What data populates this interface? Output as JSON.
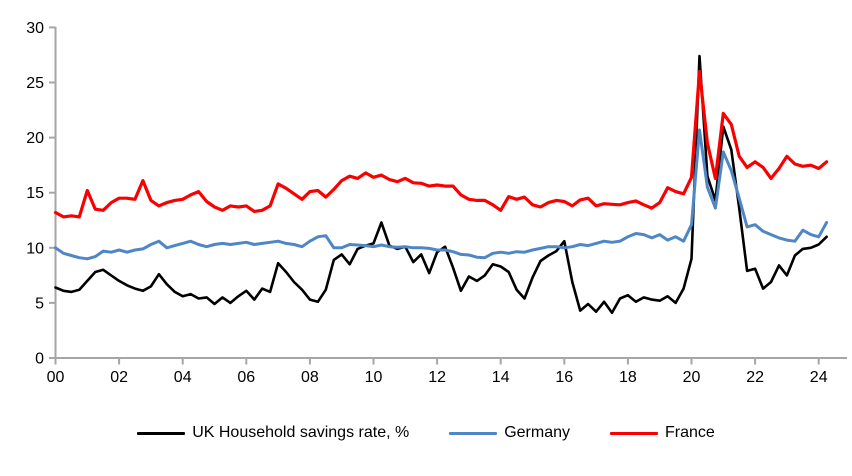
{
  "chart_data": {
    "type": "line",
    "title": "",
    "xlabel": "",
    "ylabel": "",
    "ylim": [
      0,
      30
    ],
    "xlim": [
      2000,
      2024.5
    ],
    "grid": false,
    "legend_position": "bottom-center",
    "axis_color": "#a6a6a6",
    "y_ticks": [
      0,
      5,
      10,
      15,
      20,
      25,
      30
    ],
    "x_ticks": [
      {
        "year": 2000,
        "label": "00"
      },
      {
        "year": 2002,
        "label": "02"
      },
      {
        "year": 2004,
        "label": "04"
      },
      {
        "year": 2006,
        "label": "06"
      },
      {
        "year": 2008,
        "label": "08"
      },
      {
        "year": 2010,
        "label": "10"
      },
      {
        "year": 2012,
        "label": "12"
      },
      {
        "year": 2014,
        "label": "14"
      },
      {
        "year": 2016,
        "label": "16"
      },
      {
        "year": 2018,
        "label": "18"
      },
      {
        "year": 2020,
        "label": "20"
      },
      {
        "year": 2022,
        "label": "22"
      },
      {
        "year": 2024,
        "label": "24"
      }
    ],
    "x_years": [
      2000,
      2000.25,
      2000.5,
      2000.75,
      2001,
      2001.25,
      2001.5,
      2001.75,
      2002,
      2002.25,
      2002.5,
      2002.75,
      2003,
      2003.25,
      2003.5,
      2003.75,
      2004,
      2004.25,
      2004.5,
      2004.75,
      2005,
      2005.25,
      2005.5,
      2005.75,
      2006,
      2006.25,
      2006.5,
      2006.75,
      2007,
      2007.25,
      2007.5,
      2007.75,
      2008,
      2008.25,
      2008.5,
      2008.75,
      2009,
      2009.25,
      2009.5,
      2009.75,
      2010,
      2010.25,
      2010.5,
      2010.75,
      2011,
      2011.25,
      2011.5,
      2011.75,
      2012,
      2012.25,
      2012.5,
      2012.75,
      2013,
      2013.25,
      2013.5,
      2013.75,
      2014,
      2014.25,
      2014.5,
      2014.75,
      2015,
      2015.25,
      2015.5,
      2015.75,
      2016,
      2016.25,
      2016.5,
      2016.75,
      2017,
      2017.25,
      2017.5,
      2017.75,
      2018,
      2018.25,
      2018.5,
      2018.75,
      2019,
      2019.25,
      2019.5,
      2019.75,
      2020,
      2020.25,
      2020.5,
      2020.75,
      2021,
      2021.25,
      2021.5,
      2021.75,
      2022,
      2022.25,
      2022.5,
      2022.75,
      2023,
      2023.25,
      2023.5,
      2023.75,
      2024,
      2024.25
    ],
    "series": [
      {
        "name": "UK Household savings rate, %",
        "color": "#000000",
        "stroke_width": 2.6,
        "values": [
          6.4,
          6.1,
          6.0,
          6.2,
          7.0,
          7.8,
          8.0,
          7.5,
          7.0,
          6.6,
          6.3,
          6.1,
          6.5,
          7.6,
          6.7,
          6.0,
          5.6,
          5.8,
          5.4,
          5.5,
          4.9,
          5.5,
          5.0,
          5.6,
          6.1,
          5.3,
          6.3,
          6.0,
          8.6,
          7.8,
          6.9,
          6.2,
          5.3,
          5.1,
          6.2,
          8.9,
          9.4,
          8.5,
          9.9,
          10.2,
          10.4,
          12.3,
          10.2,
          9.9,
          10.1,
          8.7,
          9.4,
          7.7,
          9.6,
          10.1,
          8.2,
          6.1,
          7.4,
          7.0,
          7.5,
          8.5,
          8.3,
          7.8,
          6.2,
          5.4,
          7.3,
          8.8,
          9.3,
          9.7,
          10.6,
          6.9,
          4.3,
          4.9,
          4.2,
          5.1,
          4.1,
          5.4,
          5.7,
          5.1,
          5.5,
          5.3,
          5.2,
          5.6,
          5.0,
          6.3,
          9.0,
          27.4,
          16.5,
          14.3,
          21.0,
          18.9,
          13.6,
          7.9,
          8.1,
          6.3,
          6.9,
          8.4,
          7.5,
          9.3,
          9.9,
          10.0,
          10.3,
          11.0
        ]
      },
      {
        "name": "Germany",
        "color": "#4f86c6",
        "stroke_width": 3.0,
        "values": [
          10.0,
          9.5,
          9.3,
          9.1,
          9.0,
          9.2,
          9.7,
          9.6,
          9.8,
          9.6,
          9.8,
          9.9,
          10.3,
          10.6,
          10.0,
          10.2,
          10.4,
          10.6,
          10.3,
          10.1,
          10.3,
          10.4,
          10.3,
          10.4,
          10.5,
          10.3,
          10.4,
          10.5,
          10.6,
          10.4,
          10.3,
          10.1,
          10.6,
          11.0,
          11.1,
          10.0,
          10.0,
          10.3,
          10.25,
          10.2,
          10.1,
          10.25,
          10.1,
          10.05,
          10.1,
          10.0,
          10.0,
          9.95,
          9.8,
          9.8,
          9.65,
          9.4,
          9.35,
          9.15,
          9.1,
          9.5,
          9.6,
          9.5,
          9.65,
          9.6,
          9.8,
          9.95,
          10.1,
          10.1,
          10.0,
          10.1,
          10.3,
          10.2,
          10.4,
          10.6,
          10.5,
          10.6,
          11.0,
          11.3,
          11.2,
          10.9,
          11.2,
          10.7,
          11.0,
          10.6,
          12.1,
          20.7,
          15.5,
          13.6,
          18.7,
          17.0,
          14.5,
          11.9,
          12.1,
          11.5,
          11.2,
          10.9,
          10.7,
          10.6,
          11.6,
          11.2,
          11.0,
          12.3
        ]
      },
      {
        "name": "France",
        "color": "#fb0000",
        "stroke_width": 3.2,
        "values": [
          13.2,
          12.8,
          12.9,
          12.8,
          15.2,
          13.5,
          13.4,
          14.1,
          14.5,
          14.5,
          14.4,
          16.1,
          14.3,
          13.8,
          14.1,
          14.3,
          14.4,
          14.8,
          15.1,
          14.2,
          13.7,
          13.4,
          13.8,
          13.7,
          13.8,
          13.3,
          13.4,
          13.8,
          15.8,
          15.4,
          14.9,
          14.4,
          15.1,
          15.2,
          14.6,
          15.3,
          16.1,
          16.5,
          16.3,
          16.8,
          16.4,
          16.6,
          16.2,
          16.0,
          16.3,
          15.9,
          15.85,
          15.6,
          15.7,
          15.6,
          15.6,
          14.8,
          14.4,
          14.3,
          14.3,
          13.9,
          13.4,
          14.65,
          14.4,
          14.6,
          13.9,
          13.7,
          14.1,
          14.3,
          14.2,
          13.8,
          14.35,
          14.5,
          13.8,
          14.0,
          13.95,
          13.9,
          14.1,
          14.25,
          13.9,
          13.6,
          14.1,
          15.45,
          15.1,
          14.9,
          16.4,
          26.0,
          19.5,
          16.3,
          22.2,
          21.2,
          18.3,
          17.3,
          17.8,
          17.3,
          16.3,
          17.2,
          18.3,
          17.6,
          17.4,
          17.5,
          17.2,
          17.8
        ]
      }
    ]
  },
  "legend": {
    "items": [
      {
        "label": "UK Household savings rate, %"
      },
      {
        "label": "Germany"
      },
      {
        "label": "France"
      }
    ]
  }
}
